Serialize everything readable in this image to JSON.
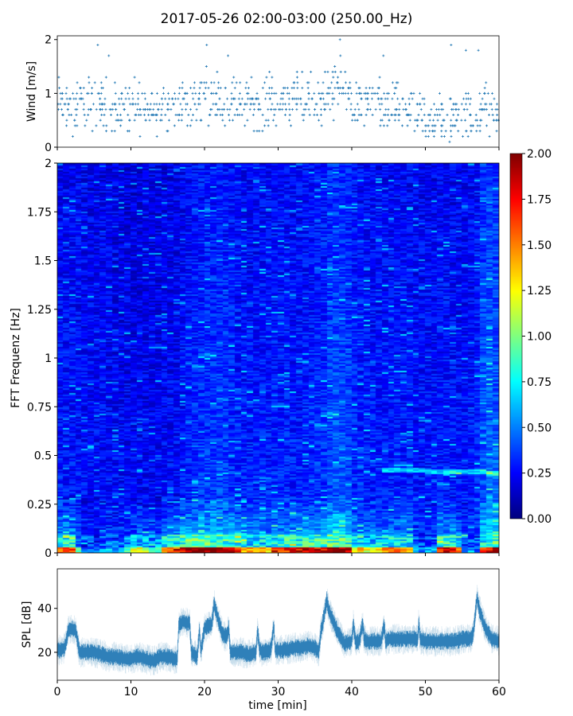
{
  "title": "2017-05-26 02:00-03:00 (250.00_Hz)",
  "chart_data": [
    {
      "type": "scatter",
      "ylabel": "Wind [m/s]",
      "xlim": [
        0,
        60
      ],
      "ylim": [
        0,
        2.07
      ],
      "yticks": [
        "0",
        "1",
        "2"
      ],
      "marker": "+",
      "color": "#1f77b4",
      "x_minutes": [
        0,
        1,
        2,
        3,
        4,
        5,
        6,
        7,
        8,
        9,
        10,
        11,
        12,
        13,
        14,
        15,
        16,
        17,
        18,
        19,
        20,
        21,
        22,
        23,
        24,
        25,
        26,
        27,
        28,
        29,
        30,
        31,
        32,
        33,
        34,
        35,
        36,
        37,
        38,
        39,
        40,
        41,
        42,
        43,
        44,
        45,
        46,
        47,
        48,
        49,
        50,
        51,
        52,
        53,
        54,
        55,
        56,
        57,
        58,
        59
      ],
      "wind_median": [
        0.8,
        0.75,
        0.7,
        0.8,
        0.8,
        0.85,
        0.8,
        0.75,
        0.75,
        0.7,
        0.75,
        0.7,
        0.7,
        0.75,
        0.8,
        0.75,
        0.7,
        0.8,
        0.85,
        0.9,
        1.0,
        0.95,
        0.9,
        0.85,
        0.8,
        0.8,
        0.85,
        0.8,
        0.85,
        0.85,
        0.85,
        0.9,
        0.9,
        0.85,
        0.9,
        0.9,
        0.95,
        1.0,
        1.1,
        1.0,
        0.8,
        0.8,
        0.75,
        0.75,
        0.75,
        0.7,
        0.7,
        0.7,
        0.6,
        0.55,
        0.5,
        0.5,
        0.5,
        0.55,
        0.6,
        0.6,
        0.55,
        0.6,
        0.7,
        0.65
      ],
      "wind_peaks": [
        [
          5.5,
          1.9
        ],
        [
          20.3,
          1.9
        ],
        [
          38.4,
          2.0
        ],
        [
          53.5,
          1.9
        ],
        [
          55.5,
          1.8
        ],
        [
          57.2,
          1.8
        ],
        [
          7,
          1.7
        ],
        [
          23.2,
          1.7
        ],
        [
          44.3,
          1.7
        ]
      ]
    },
    {
      "type": "heatmap",
      "ylabel": "FFT Frequenz [Hz]",
      "xlim": [
        0,
        60
      ],
      "ylim": [
        0,
        2
      ],
      "yticks": [
        "0",
        "0.25",
        "0.5",
        "0.75",
        "1",
        "1.25",
        "1.5",
        "1.75",
        "2"
      ],
      "colormap": "jet",
      "clim": [
        0,
        2
      ],
      "colorbar_ticks": [
        "0.00",
        "0.25",
        "0.50",
        "0.75",
        "1.00",
        "1.25",
        "1.50",
        "1.75",
        "2.00"
      ],
      "low_band_level_per_minute": [
        1.6,
        1.7,
        0.9,
        0.5,
        0.4,
        0.5,
        0.6,
        0.5,
        0.7,
        0.9,
        1.2,
        1.1,
        0.8,
        0.9,
        1.4,
        1.6,
        1.8,
        2,
        2,
        2,
        2,
        2,
        1.9,
        1.8,
        1.7,
        1.4,
        1.5,
        1.4,
        1.3,
        1.6,
        1.7,
        1.8,
        1.7,
        1.8,
        1.9,
        1.8,
        2,
        2,
        2,
        1.9,
        1.3,
        1.2,
        1.3,
        1.3,
        1.4,
        1.5,
        1.4,
        1.3,
        0.6,
        0.5,
        0.6,
        1.7,
        1.8,
        1.7,
        1.6,
        0.6,
        0.5,
        1.6,
        1.8,
        1.9
      ],
      "broadband_level_per_minute": [
        0.3,
        0.3,
        0.3,
        0.28,
        0.28,
        0.28,
        0.27,
        0.26,
        0.25,
        0.25,
        0.25,
        0.25,
        0.25,
        0.25,
        0.26,
        0.27,
        0.3,
        0.33,
        0.35,
        0.36,
        0.38,
        0.4,
        0.37,
        0.35,
        0.33,
        0.32,
        0.32,
        0.33,
        0.32,
        0.33,
        0.33,
        0.32,
        0.32,
        0.33,
        0.34,
        0.36,
        0.42,
        0.45,
        0.44,
        0.4,
        0.34,
        0.33,
        0.32,
        0.32,
        0.32,
        0.32,
        0.32,
        0.32,
        0.3,
        0.3,
        0.3,
        0.31,
        0.31,
        0.3,
        0.3,
        0.3,
        0.33,
        0.45,
        0.48,
        0.46
      ]
    },
    {
      "type": "line",
      "ylabel": "SPL [dB]",
      "xlabel": "time [min]",
      "xlim": [
        0,
        60
      ],
      "ylim": [
        7.3,
        58
      ],
      "xticks": [
        "0",
        "10",
        "20",
        "30",
        "40",
        "50",
        "60"
      ],
      "yticks": [
        "20",
        "40"
      ],
      "color": "#1f77b4",
      "x": [
        0,
        0.5,
        1,
        1.5,
        2,
        2.5,
        3,
        4,
        5,
        6,
        7,
        8,
        9,
        10,
        11,
        12,
        13,
        14,
        15,
        16,
        16.3,
        16.5,
        17,
        18,
        18.2,
        19,
        19.3,
        19.5,
        20,
        21,
        21.3,
        22,
        22.5,
        23,
        23.3,
        23.5,
        24,
        25,
        26,
        27,
        27.2,
        27.5,
        28,
        29,
        29.4,
        29.6,
        30,
        31,
        32,
        33,
        34,
        35,
        35.5,
        35.8,
        36.3,
        36.6,
        37,
        38,
        39,
        40,
        40.2,
        40.5,
        41,
        41.5,
        41.7,
        42,
        43,
        44,
        44.4,
        44.6,
        45,
        46,
        47,
        48,
        49,
        49.1,
        49.3,
        50,
        51,
        52,
        53,
        54,
        55,
        56,
        56.5,
        57,
        57.3,
        58,
        59,
        60
      ],
      "y": [
        21,
        21,
        22,
        30,
        31,
        30,
        20,
        20,
        20,
        19,
        18,
        18,
        17,
        17,
        18,
        17,
        16,
        18,
        18,
        17,
        17,
        32,
        34,
        33,
        20,
        18,
        30,
        20,
        31,
        33,
        42,
        33,
        28,
        27,
        31,
        20,
        20,
        20,
        19,
        20,
        30,
        21,
        20,
        21,
        32,
        21,
        21,
        21,
        22,
        22,
        23,
        22,
        20,
        29,
        38,
        44,
        38,
        30,
        24,
        25,
        33,
        25,
        25,
        33,
        26,
        25,
        25,
        25,
        33,
        25,
        26,
        26,
        26,
        26,
        26,
        34,
        26,
        25,
        25,
        25,
        25,
        25,
        26,
        26,
        28,
        45,
        40,
        32,
        26,
        25
      ]
    }
  ]
}
